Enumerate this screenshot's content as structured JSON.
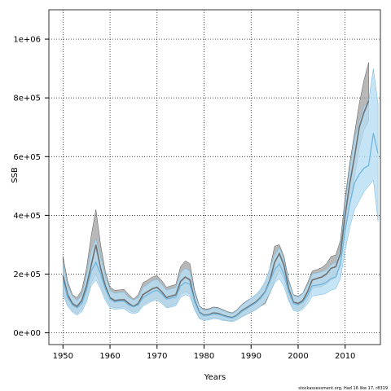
{
  "chart_data": {
    "type": "area",
    "xlabel": "Years",
    "ylabel": "SSB",
    "xlim": [
      1947,
      2017.5
    ],
    "ylim": [
      -40000,
      1100000
    ],
    "x_ticks": [
      1950,
      1960,
      1970,
      1980,
      1990,
      2000,
      2010
    ],
    "y_ticks": [
      {
        "value": 0,
        "label": "0e+00"
      },
      {
        "value": 200000,
        "label": "2e+05"
      },
      {
        "value": 400000,
        "label": "4e+05"
      },
      {
        "value": 600000,
        "label": "6e+05"
      },
      {
        "value": 800000,
        "label": "8e+05"
      },
      {
        "value": 1000000,
        "label": "1e+06"
      }
    ],
    "grid": true,
    "grid_style": "dotted",
    "colors": {
      "grey_band": "#a0a0a0",
      "grey_line": "#707070",
      "blue_band": "#b7ddf2",
      "blue_line": "#6fb6e0"
    },
    "series": [
      {
        "x": [
          1950,
          1951,
          1952,
          1953,
          1954,
          1955,
          1956,
          1957,
          1958,
          1959,
          1960,
          1961,
          1962,
          1963,
          1964,
          1965,
          1966,
          1967,
          1968,
          1969,
          1970,
          1971,
          1972,
          1973,
          1974,
          1975,
          1976,
          1977,
          1978,
          1979,
          1980,
          1981,
          1982,
          1983,
          1984,
          1985,
          1986,
          1987,
          1988,
          1989,
          1990,
          1991,
          1992,
          1993,
          1994,
          1995,
          1996,
          1997,
          1998,
          1999,
          2000,
          2001,
          2002,
          2003,
          2004,
          2005,
          2006,
          2007,
          2008,
          2009,
          2010,
          2011,
          2012,
          2013,
          2014,
          2015
        ],
        "estimate": [
          195000,
          130000,
          100000,
          90000,
          110000,
          160000,
          230000,
          300000,
          220000,
          160000,
          120000,
          110000,
          112000,
          113000,
          100000,
          90000,
          100000,
          130000,
          140000,
          150000,
          155000,
          140000,
          120000,
          125000,
          130000,
          175000,
          190000,
          180000,
          110000,
          70000,
          60000,
          62000,
          68000,
          66000,
          60000,
          55000,
          52000,
          60000,
          75000,
          85000,
          95000,
          105000,
          120000,
          140000,
          180000,
          240000,
          270000,
          230000,
          150000,
          105000,
          100000,
          110000,
          140000,
          180000,
          185000,
          190000,
          200000,
          220000,
          225000,
          270000,
          400000,
          510000,
          600000,
          700000,
          750000,
          790000
        ],
        "lower": [
          140000,
          95000,
          75000,
          65000,
          80000,
          115000,
          170000,
          200000,
          160000,
          120000,
          90000,
          85000,
          86000,
          88000,
          78000,
          70000,
          75000,
          95000,
          105000,
          112000,
          118000,
          105000,
          88000,
          92000,
          98000,
          130000,
          140000,
          132000,
          82000,
          50000,
          45000,
          47000,
          52000,
          50000,
          45000,
          42000,
          40000,
          46000,
          55000,
          62000,
          72000,
          80000,
          90000,
          100000,
          135000,
          175000,
          215000,
          180000,
          115000,
          82000,
          78000,
          86000,
          112000,
          150000,
          155000,
          158000,
          166000,
          180000,
          188000,
          230000,
          340000,
          440000,
          530000,
          630000,
          690000,
          720000
        ],
        "upper": [
          260000,
          175000,
          130000,
          120000,
          145000,
          220000,
          330000,
          420000,
          300000,
          210000,
          155000,
          145000,
          146000,
          148000,
          130000,
          115000,
          130000,
          170000,
          180000,
          190000,
          195000,
          178000,
          155000,
          160000,
          165000,
          225000,
          245000,
          235000,
          145000,
          92000,
          80000,
          82000,
          88000,
          86000,
          79000,
          72000,
          68000,
          78000,
          96000,
          108000,
          118000,
          128000,
          145000,
          170000,
          220000,
          295000,
          300000,
          260000,
          180000,
          130000,
          125000,
          135000,
          170000,
          210000,
          215000,
          222000,
          235000,
          260000,
          265000,
          315000,
          460000,
          580000,
          680000,
          780000,
          860000,
          920000
        ]
      },
      {
        "x": [
          1950,
          1951,
          1952,
          1953,
          1954,
          1955,
          1956,
          1957,
          1958,
          1959,
          1960,
          1961,
          1962,
          1963,
          1964,
          1965,
          1966,
          1967,
          1968,
          1969,
          1970,
          1971,
          1972,
          1973,
          1974,
          1975,
          1976,
          1977,
          1978,
          1979,
          1980,
          1981,
          1982,
          1983,
          1984,
          1985,
          1986,
          1987,
          1988,
          1989,
          1990,
          1991,
          1992,
          1993,
          1994,
          1995,
          1996,
          1997,
          1998,
          1999,
          2000,
          2001,
          2002,
          2003,
          2004,
          2005,
          2006,
          2007,
          2008,
          2009,
          2010,
          2011,
          2012,
          2013,
          2014,
          2015,
          2016,
          2017
        ],
        "estimate": [
          180000,
          120000,
          95000,
          85000,
          100000,
          145000,
          210000,
          240000,
          200000,
          150000,
          115000,
          105000,
          108000,
          108000,
          95000,
          88000,
          95000,
          120000,
          130000,
          140000,
          145000,
          132000,
          115000,
          118000,
          122000,
          160000,
          172000,
          165000,
          105000,
          68000,
          58000,
          60000,
          65000,
          63000,
          58000,
          53000,
          50000,
          58000,
          72000,
          82000,
          92000,
          102000,
          117000,
          138000,
          175000,
          215000,
          235000,
          200000,
          140000,
          100000,
          95000,
          105000,
          128000,
          160000,
          162000,
          165000,
          172000,
          185000,
          190000,
          235000,
          350000,
          440000,
          510000,
          540000,
          560000,
          570000,
          680000,
          610000
        ],
        "lower": [
          130000,
          90000,
          70000,
          60000,
          72000,
          105000,
          160000,
          180000,
          150000,
          110000,
          85000,
          80000,
          82000,
          82000,
          70000,
          65000,
          70000,
          90000,
          100000,
          108000,
          112000,
          100000,
          85000,
          88000,
          92000,
          120000,
          130000,
          124000,
          78000,
          48000,
          42000,
          44000,
          48000,
          47000,
          42000,
          40000,
          38000,
          44000,
          54000,
          62000,
          70000,
          78000,
          90000,
          105000,
          135000,
          170000,
          185000,
          158000,
          108000,
          76000,
          72000,
          80000,
          98000,
          125000,
          128000,
          130000,
          135000,
          145000,
          150000,
          185000,
          280000,
          360000,
          420000,
          450000,
          480000,
          500000,
          520000,
          380000
        ],
        "upper": [
          240000,
          160000,
          125000,
          110000,
          130000,
          195000,
          280000,
          320000,
          260000,
          195000,
          145000,
          135000,
          138000,
          138000,
          120000,
          112000,
          120000,
          155000,
          165000,
          178000,
          182000,
          165000,
          145000,
          150000,
          155000,
          205000,
          220000,
          210000,
          135000,
          90000,
          76000,
          78000,
          85000,
          83000,
          76000,
          70000,
          66000,
          76000,
          94000,
          106000,
          118000,
          130000,
          148000,
          175000,
          220000,
          265000,
          290000,
          250000,
          175000,
          128000,
          122000,
          134000,
          162000,
          200000,
          204000,
          208000,
          215000,
          232000,
          240000,
          290000,
          440000,
          560000,
          660000,
          720000,
          770000,
          790000,
          900000,
          780000
        ]
      }
    ]
  },
  "footer": "stockassessment.org, Had 16 like 17, r8319"
}
